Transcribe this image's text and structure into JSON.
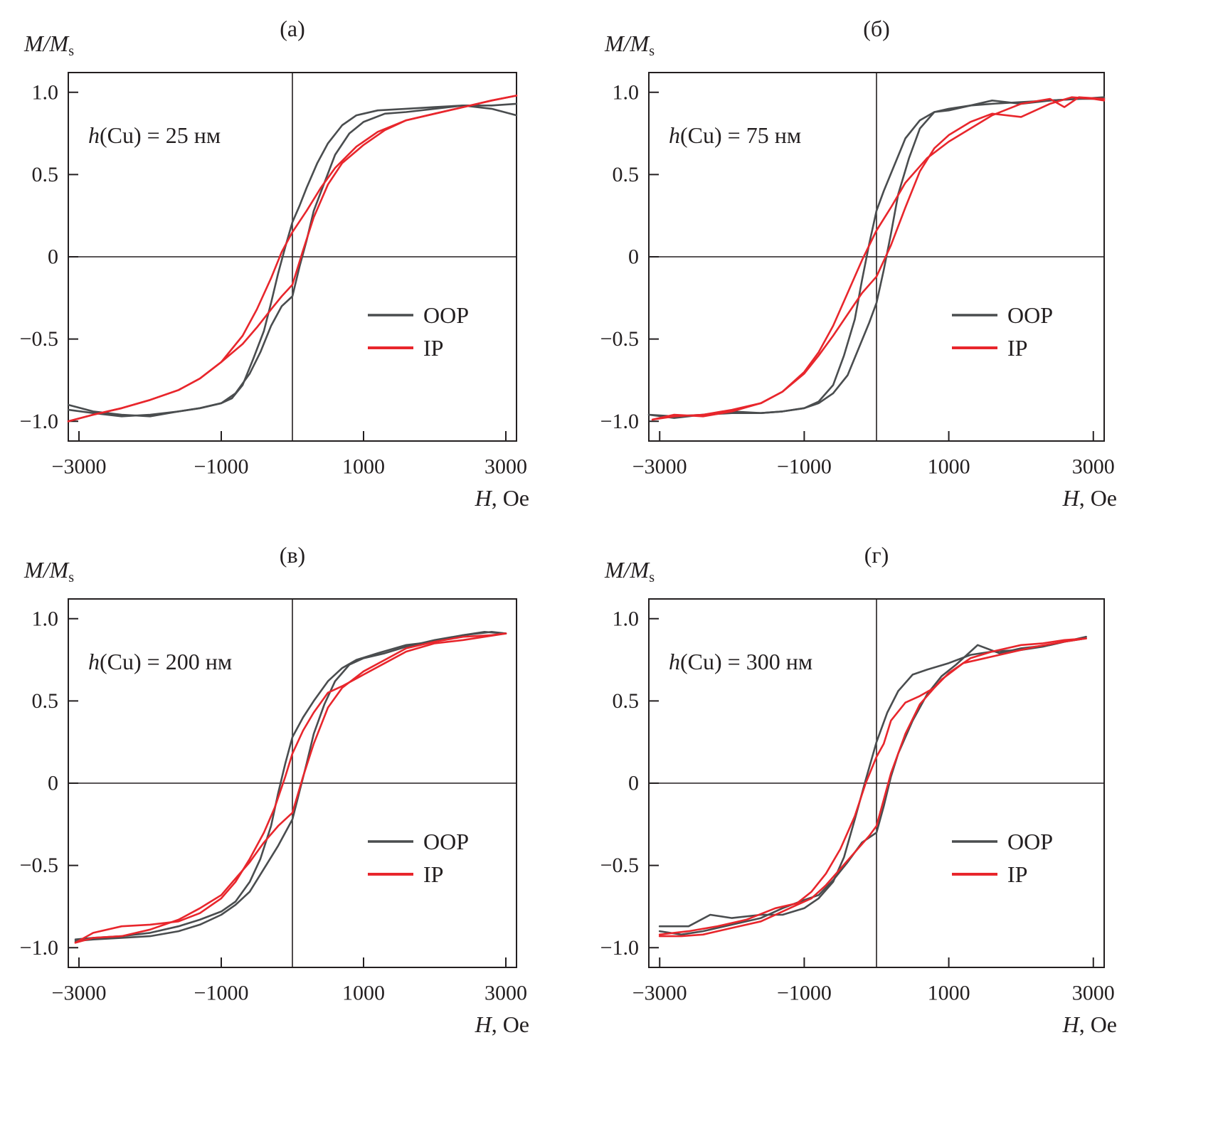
{
  "figure": {
    "colors": {
      "OOP": "#4a4d4f",
      "IP": "#e8262c",
      "axes": "#231f20"
    },
    "legend": {
      "entries": [
        "OOP",
        "IP"
      ],
      "placement": "center-right"
    }
  },
  "chart_data": [
    {
      "type": "line",
      "panel_label": "(а)",
      "annotation": {
        "prefix": "h",
        "text": "(Cu) = 25 нм"
      },
      "ylabel": "M/M",
      "ylabel_sub": "s",
      "xlabel_italic": "H",
      "xlabel_rest": ", Oe",
      "xlim": [
        -3150,
        3150
      ],
      "ylim": [
        -1.12,
        1.12
      ],
      "xticks": [
        -3000,
        -1000,
        1000,
        3000
      ],
      "xtick_labels": [
        "−3000",
        "−1000",
        "1000",
        "3000"
      ],
      "yticks": [
        1.0,
        0.5,
        0,
        -0.5,
        -1.0
      ],
      "ytick_labels": [
        "1.0",
        "0.5",
        "0",
        "−0.5",
        "−1.0"
      ],
      "series": [
        {
          "name": "OOP",
          "branch": "descending",
          "x": [
            3150,
            2800,
            2400,
            2000,
            1600,
            1200,
            900,
            700,
            500,
            350,
            200,
            100,
            0,
            -100,
            -200,
            -300,
            -400,
            -550,
            -700,
            -850,
            -1000,
            -1300,
            -1600,
            -2000,
            -2400,
            -2800,
            -3150
          ],
          "y": [
            0.86,
            0.9,
            0.92,
            0.91,
            0.9,
            0.89,
            0.86,
            0.8,
            0.69,
            0.57,
            0.42,
            0.31,
            0.21,
            0.06,
            -0.1,
            -0.28,
            -0.45,
            -0.62,
            -0.78,
            -0.86,
            -0.89,
            -0.92,
            -0.94,
            -0.97,
            -0.96,
            -0.94,
            -0.9
          ]
        },
        {
          "name": "OOP",
          "branch": "ascending",
          "x": [
            -3150,
            -2800,
            -2400,
            -2000,
            -1600,
            -1300,
            -1000,
            -800,
            -600,
            -450,
            -300,
            -150,
            0,
            100,
            200,
            300,
            450,
            600,
            800,
            1000,
            1300,
            1600,
            2000,
            2400,
            2800,
            3150
          ],
          "y": [
            -0.93,
            -0.95,
            -0.97,
            -0.96,
            -0.94,
            -0.92,
            -0.89,
            -0.83,
            -0.71,
            -0.58,
            -0.42,
            -0.3,
            -0.24,
            -0.06,
            0.1,
            0.28,
            0.45,
            0.62,
            0.75,
            0.82,
            0.87,
            0.88,
            0.9,
            0.92,
            0.92,
            0.93
          ]
        },
        {
          "name": "IP",
          "branch": "descending",
          "x": [
            3150,
            2800,
            2400,
            2000,
            1600,
            1200,
            900,
            600,
            400,
            200,
            0,
            -150,
            -300,
            -500,
            -700,
            -1000,
            -1300,
            -1600,
            -2000,
            -2400,
            -2800,
            -3150
          ],
          "y": [
            0.98,
            0.95,
            0.91,
            0.87,
            0.83,
            0.76,
            0.67,
            0.54,
            0.42,
            0.28,
            0.15,
            0.03,
            -0.13,
            -0.32,
            -0.48,
            -0.64,
            -0.74,
            -0.81,
            -0.87,
            -0.92,
            -0.96,
            -1.0
          ]
        },
        {
          "name": "IP",
          "branch": "ascending",
          "x": [
            -3150,
            -2800,
            -2400,
            -2000,
            -1600,
            -1300,
            -1000,
            -700,
            -500,
            -300,
            -150,
            0,
            150,
            300,
            500,
            700,
            1000,
            1300,
            1600,
            2000,
            2400,
            2800,
            3150
          ],
          "y": [
            -1.0,
            -0.96,
            -0.92,
            -0.87,
            -0.81,
            -0.74,
            -0.64,
            -0.53,
            -0.43,
            -0.32,
            -0.24,
            -0.17,
            0.04,
            0.24,
            0.44,
            0.57,
            0.68,
            0.77,
            0.83,
            0.87,
            0.91,
            0.95,
            0.98
          ]
        }
      ]
    },
    {
      "type": "line",
      "panel_label": "(б)",
      "annotation": {
        "prefix": "h",
        "text": "(Cu) = 75 нм"
      },
      "ylabel": "M/M",
      "ylabel_sub": "s",
      "xlabel_italic": "H",
      "xlabel_rest": ", Oe",
      "xlim": [
        -3150,
        3150
      ],
      "ylim": [
        -1.12,
        1.12
      ],
      "xticks": [
        -3000,
        -1000,
        1000,
        3000
      ],
      "xtick_labels": [
        "−3000",
        "−1000",
        "1000",
        "3000"
      ],
      "yticks": [
        1.0,
        0.5,
        0,
        -0.5,
        -1.0
      ],
      "ytick_labels": [
        "1.0",
        "0.5",
        "0",
        "−0.5",
        "−1.0"
      ],
      "series": [
        {
          "name": "OOP",
          "branch": "descending",
          "x": [
            3150,
            2800,
            2400,
            2000,
            1600,
            1300,
            1000,
            800,
            600,
            400,
            250,
            100,
            0,
            -100,
            -200,
            -300,
            -450,
            -600,
            -800,
            -1000,
            -1300,
            -1600,
            -2000,
            -2400,
            -2800,
            -3150
          ],
          "y": [
            0.96,
            0.96,
            0.95,
            0.93,
            0.95,
            0.92,
            0.89,
            0.88,
            0.83,
            0.72,
            0.56,
            0.4,
            0.28,
            0.08,
            -0.14,
            -0.38,
            -0.6,
            -0.78,
            -0.88,
            -0.92,
            -0.94,
            -0.95,
            -0.95,
            -0.96,
            -0.97,
            -0.96
          ]
        },
        {
          "name": "OOP",
          "branch": "ascending",
          "x": [
            -3150,
            -2800,
            -2400,
            -2000,
            -1600,
            -1300,
            -1000,
            -800,
            -600,
            -400,
            -250,
            -100,
            0,
            100,
            200,
            300,
            450,
            600,
            800,
            1000,
            1300,
            1600,
            2000,
            2400,
            2800,
            3150
          ],
          "y": [
            -0.96,
            -0.98,
            -0.96,
            -0.94,
            -0.95,
            -0.94,
            -0.92,
            -0.89,
            -0.83,
            -0.72,
            -0.56,
            -0.4,
            -0.28,
            -0.08,
            0.14,
            0.38,
            0.6,
            0.78,
            0.88,
            0.9,
            0.92,
            0.93,
            0.94,
            0.95,
            0.96,
            0.97
          ]
        },
        {
          "name": "IP",
          "branch": "descending",
          "x": [
            3150,
            2800,
            2600,
            2400,
            2000,
            1600,
            1300,
            1000,
            700,
            400,
            200,
            0,
            -200,
            -400,
            -600,
            -800,
            -1000,
            -1300,
            -1600,
            -2000,
            -2400,
            -2800,
            -3100
          ],
          "y": [
            0.96,
            0.97,
            0.91,
            0.96,
            0.93,
            0.86,
            0.78,
            0.7,
            0.6,
            0.45,
            0.3,
            0.16,
            -0.02,
            -0.22,
            -0.42,
            -0.58,
            -0.7,
            -0.82,
            -0.89,
            -0.93,
            -0.96,
            -0.97,
            -0.99
          ]
        },
        {
          "name": "IP",
          "branch": "ascending",
          "x": [
            -3100,
            -2800,
            -2400,
            -2000,
            -1600,
            -1300,
            -1000,
            -800,
            -600,
            -400,
            -200,
            0,
            200,
            400,
            600,
            800,
            1000,
            1300,
            1600,
            2000,
            2400,
            2700,
            3000,
            3150
          ],
          "y": [
            -0.99,
            -0.96,
            -0.97,
            -0.94,
            -0.89,
            -0.82,
            -0.71,
            -0.6,
            -0.48,
            -0.35,
            -0.22,
            -0.12,
            0.07,
            0.3,
            0.52,
            0.66,
            0.74,
            0.82,
            0.87,
            0.85,
            0.93,
            0.97,
            0.96,
            0.95
          ]
        }
      ]
    },
    {
      "type": "line",
      "panel_label": "(в)",
      "annotation": {
        "prefix": "h",
        "text": "(Cu) = 200 нм"
      },
      "ylabel": "M/M",
      "ylabel_sub": "s",
      "xlabel_italic": "H",
      "xlabel_rest": ", Oe",
      "xlim": [
        -3150,
        3150
      ],
      "ylim": [
        -1.12,
        1.12
      ],
      "xticks": [
        -3000,
        -1000,
        1000,
        3000
      ],
      "xtick_labels": [
        "−3000",
        "−1000",
        "1000",
        "3000"
      ],
      "yticks": [
        1.0,
        0.5,
        0,
        -0.5,
        -1.0
      ],
      "ytick_labels": [
        "1.0",
        "0.5",
        "0",
        "−0.5",
        "−1.0"
      ],
      "series": [
        {
          "name": "OOP",
          "branch": "descending",
          "x": [
            3000,
            2700,
            2400,
            2000,
            1600,
            1200,
            900,
            700,
            500,
            300,
            150,
            0,
            -100,
            -200,
            -300,
            -450,
            -600,
            -800,
            -1000,
            -1300,
            -1600,
            -2000,
            -2400,
            -2800,
            -3050
          ],
          "y": [
            0.91,
            0.92,
            0.9,
            0.86,
            0.84,
            0.79,
            0.75,
            0.7,
            0.62,
            0.5,
            0.4,
            0.28,
            0.12,
            -0.06,
            -0.26,
            -0.46,
            -0.6,
            -0.72,
            -0.78,
            -0.83,
            -0.87,
            -0.91,
            -0.93,
            -0.94,
            -0.95
          ]
        },
        {
          "name": "OOP",
          "branch": "ascending",
          "x": [
            -3050,
            -2800,
            -2400,
            -2000,
            -1600,
            -1300,
            -1000,
            -800,
            -600,
            -400,
            -200,
            0,
            100,
            200,
            300,
            450,
            600,
            800,
            1000,
            1300,
            1600,
            2000,
            2400,
            2800,
            3000
          ],
          "y": [
            -0.96,
            -0.95,
            -0.94,
            -0.93,
            -0.9,
            -0.86,
            -0.8,
            -0.74,
            -0.66,
            -0.52,
            -0.38,
            -0.22,
            -0.05,
            0.12,
            0.3,
            0.48,
            0.62,
            0.72,
            0.76,
            0.79,
            0.83,
            0.87,
            0.9,
            0.92,
            0.91
          ]
        },
        {
          "name": "IP",
          "branch": "descending",
          "x": [
            3000,
            2700,
            2400,
            2000,
            1600,
            1300,
            1000,
            700,
            500,
            300,
            150,
            0,
            -100,
            -250,
            -400,
            -600,
            -800,
            -1000,
            -1300,
            -1600,
            -2000,
            -2400,
            -2800,
            -3050
          ],
          "y": [
            0.91,
            0.89,
            0.87,
            0.85,
            0.8,
            0.73,
            0.66,
            0.59,
            0.55,
            0.43,
            0.32,
            0.18,
            0.04,
            -0.15,
            -0.3,
            -0.46,
            -0.6,
            -0.7,
            -0.79,
            -0.84,
            -0.86,
            -0.87,
            -0.91,
            -0.97
          ]
        },
        {
          "name": "IP",
          "branch": "ascending",
          "x": [
            -3050,
            -2800,
            -2400,
            -2000,
            -1600,
            -1300,
            -1000,
            -800,
            -600,
            -400,
            -200,
            0,
            150,
            300,
            500,
            700,
            1000,
            1300,
            1600,
            2000,
            2400,
            2800,
            3000
          ],
          "y": [
            -0.97,
            -0.94,
            -0.93,
            -0.89,
            -0.83,
            -0.76,
            -0.68,
            -0.58,
            -0.48,
            -0.36,
            -0.26,
            -0.18,
            0.04,
            0.24,
            0.46,
            0.58,
            0.68,
            0.75,
            0.82,
            0.86,
            0.89,
            0.9,
            0.91
          ]
        }
      ]
    },
    {
      "type": "line",
      "panel_label": "(г)",
      "annotation": {
        "prefix": "h",
        "text": "(Cu) = 300 нм"
      },
      "ylabel": "M/M",
      "ylabel_sub": "s",
      "xlabel_italic": "H",
      "xlabel_rest": ", Oe",
      "xlim": [
        -3150,
        3150
      ],
      "ylim": [
        -1.12,
        1.12
      ],
      "xticks": [
        -3000,
        -1000,
        1000,
        3000
      ],
      "xtick_labels": [
        "−3000",
        "−1000",
        "1000",
        "3000"
      ],
      "yticks": [
        1.0,
        0.5,
        0,
        -0.5,
        -1.0
      ],
      "ytick_labels": [
        "1.0",
        "0.5",
        "0",
        "−0.5",
        "−1.0"
      ],
      "series": [
        {
          "name": "OOP",
          "branch": "descending",
          "x": [
            2900,
            2600,
            2300,
            2000,
            1600,
            1300,
            1000,
            700,
            500,
            300,
            150,
            0,
            -150,
            -300,
            -450,
            -600,
            -800,
            -1000,
            -1300,
            -1600,
            -2000,
            -2300,
            -2600,
            -3000
          ],
          "y": [
            0.88,
            0.86,
            0.83,
            0.81,
            0.8,
            0.78,
            0.73,
            0.69,
            0.66,
            0.56,
            0.43,
            0.25,
            0.02,
            -0.22,
            -0.45,
            -0.6,
            -0.7,
            -0.76,
            -0.8,
            -0.8,
            -0.82,
            -0.8,
            -0.87,
            -0.87
          ]
        },
        {
          "name": "OOP",
          "branch": "ascending",
          "x": [
            -3000,
            -2700,
            -2400,
            -2000,
            -1600,
            -1300,
            -1000,
            -800,
            -600,
            -400,
            -200,
            0,
            100,
            200,
            300,
            500,
            700,
            900,
            1100,
            1400,
            1700,
            2000,
            2400,
            2900
          ],
          "y": [
            -0.9,
            -0.92,
            -0.9,
            -0.86,
            -0.82,
            -0.76,
            -0.71,
            -0.68,
            -0.59,
            -0.48,
            -0.36,
            -0.3,
            -0.14,
            0.04,
            0.18,
            0.38,
            0.54,
            0.65,
            0.72,
            0.84,
            0.79,
            0.82,
            0.84,
            0.89
          ]
        },
        {
          "name": "IP",
          "branch": "descending",
          "x": [
            2900,
            2600,
            2300,
            2000,
            1600,
            1300,
            1000,
            800,
            600,
            400,
            200,
            100,
            0,
            -150,
            -300,
            -500,
            -700,
            -900,
            -1100,
            -1400,
            -1800,
            -2200,
            -2600,
            -3000
          ],
          "y": [
            0.88,
            0.87,
            0.85,
            0.84,
            0.8,
            0.76,
            0.67,
            0.58,
            0.53,
            0.49,
            0.38,
            0.24,
            0.16,
            0.0,
            -0.2,
            -0.4,
            -0.55,
            -0.66,
            -0.73,
            -0.76,
            -0.83,
            -0.87,
            -0.9,
            -0.92
          ]
        },
        {
          "name": "IP",
          "branch": "ascending",
          "x": [
            -3000,
            -2700,
            -2400,
            -2000,
            -1600,
            -1300,
            -1100,
            -900,
            -700,
            -500,
            -300,
            -100,
            0,
            100,
            200,
            400,
            600,
            900,
            1200,
            1500,
            1800,
            2200,
            2600,
            2900
          ],
          "y": [
            -0.93,
            -0.93,
            -0.92,
            -0.88,
            -0.84,
            -0.78,
            -0.74,
            -0.7,
            -0.62,
            -0.52,
            -0.42,
            -0.32,
            -0.26,
            -0.1,
            0.06,
            0.3,
            0.48,
            0.63,
            0.73,
            0.76,
            0.79,
            0.83,
            0.86,
            0.88
          ]
        }
      ]
    }
  ]
}
